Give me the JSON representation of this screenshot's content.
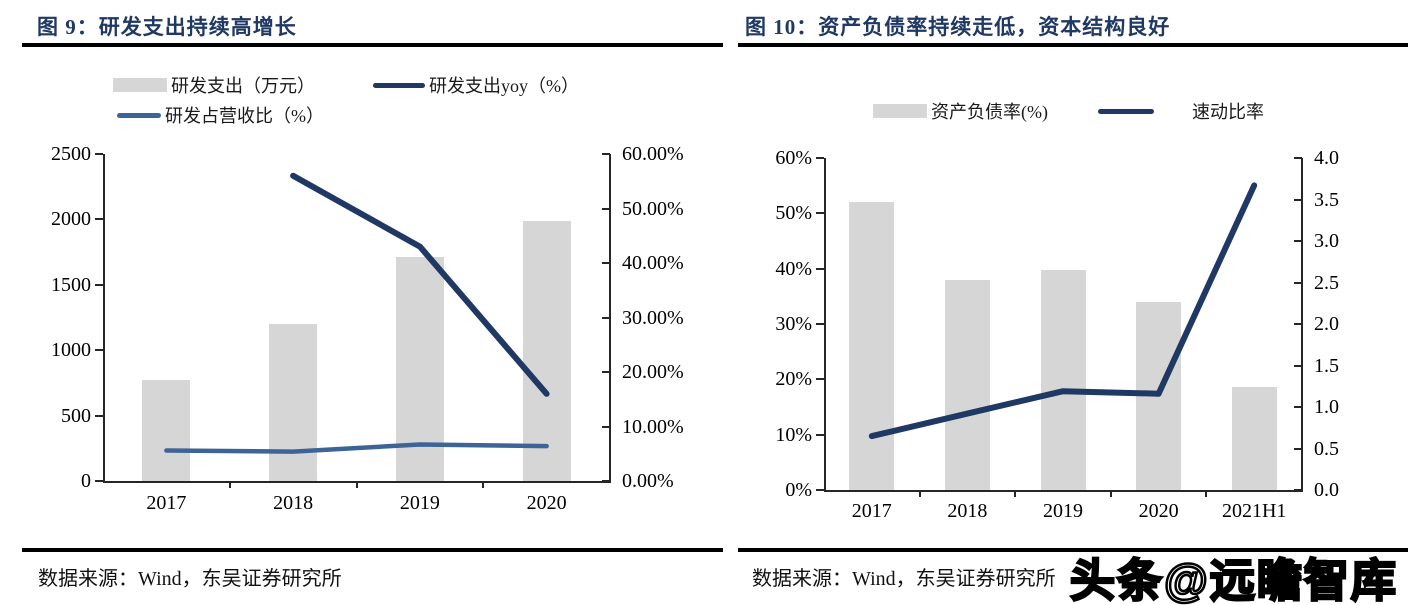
{
  "colors": {
    "navy": "#1f3864",
    "steel_blue": "#3c6496",
    "bar_gray": "#d6d6d6",
    "title_navy": "#1f3864",
    "rule_black": "#000000"
  },
  "left_panel": {
    "title": "图 9：研发支出持续高增长",
    "source": "数据来源：Wind，东吴证券研究所",
    "legend": [
      {
        "label": "研发支出（万元）"
      },
      {
        "label": "研发支出yoy（%）"
      },
      {
        "label": "研发占营收比（%）"
      }
    ]
  },
  "right_panel": {
    "title": "图 10：资产负债率持续走低，资本结构良好",
    "source": "数据来源：Wind，东吴证券研究所",
    "legend": [
      {
        "label": "资产负债率(%)"
      },
      {
        "label": "速动比率"
      }
    ]
  },
  "watermark": {
    "text": "头条@远瞻智库"
  },
  "chart_data": [
    {
      "type": "bar",
      "title": "研发支出持续高增长",
      "categories": [
        "2017",
        "2018",
        "2019",
        "2020"
      ],
      "series": [
        {
          "name": "研发支出（万元）",
          "type": "bar",
          "axis": "left",
          "color": "#d6d6d6",
          "values": [
            775,
            1200,
            1710,
            1990
          ]
        },
        {
          "name": "研发支出yoy（%）",
          "type": "line",
          "axis": "right",
          "color": "#1f3864",
          "width": 6,
          "values": [
            null,
            56,
            43,
            16
          ]
        },
        {
          "name": "研发占营收比（%）",
          "type": "line",
          "axis": "right",
          "color": "#3c6496",
          "width": 4.5,
          "values": [
            5.6,
            5.4,
            6.7,
            6.4
          ]
        }
      ],
      "left_axis": {
        "min": 0,
        "max": 2500,
        "tick_labels": [
          "0",
          "500",
          "1000",
          "1500",
          "2000",
          "2500"
        ]
      },
      "right_axis": {
        "min": 0,
        "max": 60,
        "tick_labels": [
          "0.00%",
          "10.00%",
          "20.00%",
          "30.00%",
          "40.00%",
          "50.00%",
          "60.00%"
        ]
      },
      "grid": false,
      "legend_position": "top"
    },
    {
      "type": "bar",
      "title": "资产负债率持续走低，资本结构良好",
      "categories": [
        "2017",
        "2018",
        "2019",
        "2020",
        "2021H1"
      ],
      "series": [
        {
          "name": "资产负债率(%)",
          "type": "bar",
          "axis": "left",
          "color": "#d6d6d6",
          "values": [
            52,
            38,
            39.7,
            34,
            18.7
          ]
        },
        {
          "name": "速动比率",
          "type": "line",
          "axis": "right",
          "color": "#1f3864",
          "width": 6,
          "values": [
            0.65,
            0.92,
            1.19,
            1.16,
            3.67
          ]
        }
      ],
      "left_axis": {
        "min": 0,
        "max": 60,
        "tick_labels": [
          "0%",
          "10%",
          "20%",
          "30%",
          "40%",
          "50%",
          "60%"
        ]
      },
      "right_axis": {
        "min": 0,
        "max": 4,
        "tick_labels": [
          "0.0",
          "0.5",
          "1.0",
          "1.5",
          "2.0",
          "2.5",
          "3.0",
          "3.5",
          "4.0"
        ]
      },
      "grid": false,
      "legend_position": "top"
    }
  ]
}
